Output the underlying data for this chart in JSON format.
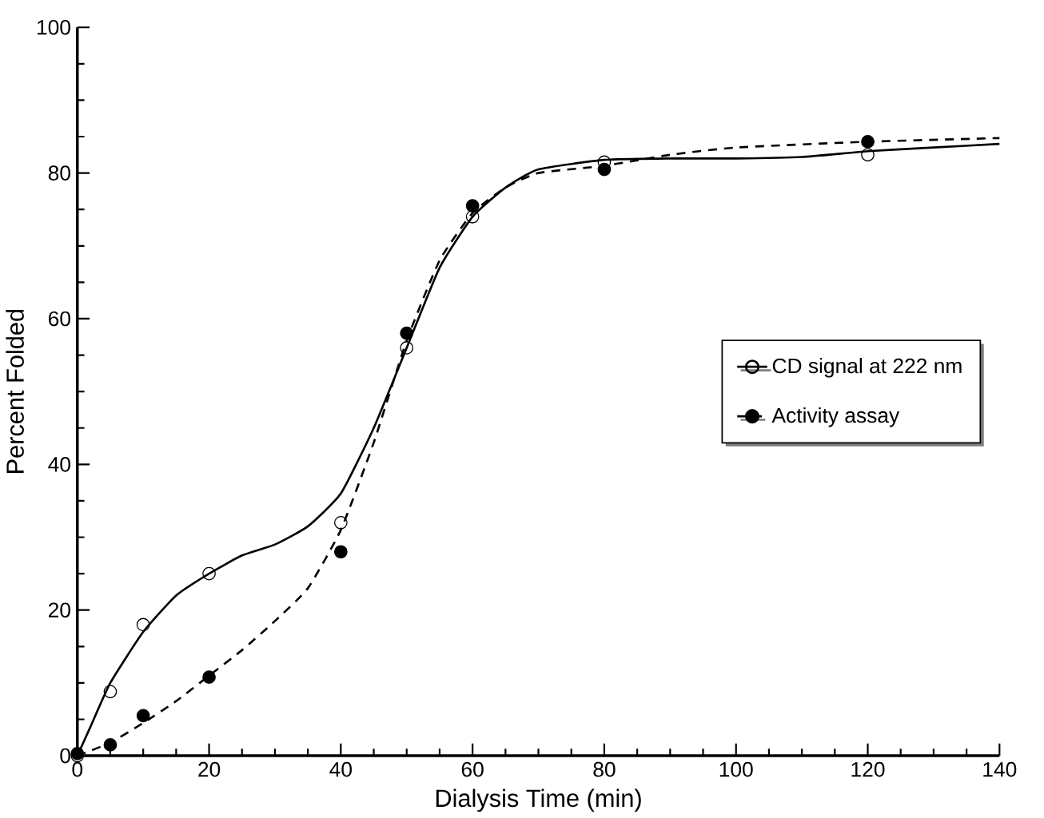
{
  "chart_data": {
    "type": "scatter",
    "xlabel": "Dialysis Time (min)",
    "ylabel": "Percent Folded",
    "xlim": [
      0,
      140
    ],
    "ylim": [
      0,
      100
    ],
    "xticks": [
      0,
      20,
      40,
      60,
      80,
      100,
      120,
      140
    ],
    "yticks": [
      0,
      20,
      40,
      60,
      80,
      100
    ],
    "grid": false,
    "legend": "right",
    "series": [
      {
        "name": "CD signal at 222 nm",
        "type": "line",
        "color": "#000000",
        "line_style": "solid",
        "marker": "none",
        "x": [
          0,
          2,
          5,
          10,
          15,
          20,
          25,
          30,
          35,
          40,
          45,
          50,
          55,
          60,
          65,
          70,
          80,
          90,
          100,
          110,
          120,
          130,
          140
        ],
        "values": [
          0,
          4,
          10,
          17,
          22,
          25,
          27.5,
          29,
          31.5,
          36,
          45,
          56,
          67,
          74,
          78,
          80.5,
          81.8,
          82,
          82,
          82.2,
          83,
          83.5,
          84
        ]
      },
      {
        "name": "Activity assay",
        "type": "line",
        "color": "#000000",
        "line_style": "dashed",
        "marker": "none",
        "x": [
          0,
          5,
          10,
          15,
          20,
          25,
          30,
          35,
          40,
          45,
          50,
          55,
          60,
          65,
          70,
          80,
          90,
          100,
          120,
          140
        ],
        "values": [
          0,
          1.8,
          4.5,
          7.5,
          11,
          14.5,
          18.5,
          23,
          31,
          43,
          57,
          68,
          74.5,
          78,
          80,
          81,
          82.5,
          83.5,
          84.3,
          84.8
        ]
      },
      {
        "color": "#000000",
        "marker": "circle",
        "x": [
          0,
          5,
          10,
          20,
          40,
          50,
          60,
          80,
          120
        ],
        "values": [
          0,
          8.8,
          18,
          25,
          32,
          56,
          74,
          81.5,
          82.5
        ]
      },
      {
        "color": "#000000",
        "marker": "filled circle",
        "x": [
          0,
          5,
          10,
          20,
          40,
          50,
          60,
          80,
          120
        ],
        "values": [
          0.3,
          1.5,
          5.5,
          10.8,
          28,
          58,
          75.5,
          80.5,
          84.3
        ]
      }
    ]
  }
}
